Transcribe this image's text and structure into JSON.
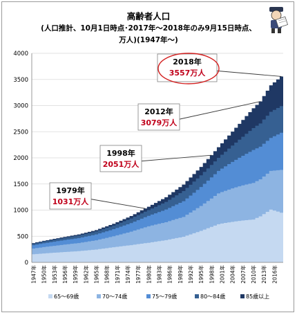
{
  "header": {
    "title_line1": "高齢者人口",
    "title_line2": "(人口推計、10月1日時点･2017年～2018年のみ9月15日時点、",
    "title_line3": "万人)(1947年～)"
  },
  "chart_data": {
    "type": "area",
    "stacked": true,
    "title": "高齢者人口",
    "subtitle": "(人口推計、10月1日時点･2017年～2018年のみ9月15日時点、万人)(1947年～)",
    "xlabel": "",
    "ylabel": "",
    "ylim": [
      0,
      4000
    ],
    "yticks": [
      0,
      500,
      1000,
      1500,
      2000,
      2500,
      3000,
      3500,
      4000
    ],
    "xtick_labels": [
      "1947年",
      "1950年",
      "1953年",
      "1956年",
      "1959年",
      "1962年",
      "1965年",
      "1968年",
      "1971年",
      "1974年",
      "1977年",
      "1980年",
      "1983年",
      "1986年",
      "1989年",
      "1992年",
      "1995年",
      "1998年",
      "2001年",
      "2004年",
      "2007年",
      "2010年",
      "2013年",
      "2016年"
    ],
    "grid": true,
    "legend_position": "bottom",
    "series": [
      {
        "name": "65～69歳",
        "color": "#c5d9f1"
      },
      {
        "name": "70～74歳",
        "color": "#8db4e2"
      },
      {
        "name": "75～79歳",
        "color": "#538dd5"
      },
      {
        "name": "80～84歳",
        "color": "#366092"
      },
      {
        "name": "85歳以上",
        "color": "#1f3864"
      }
    ],
    "totals_anchor": [
      [
        1947,
        370
      ],
      [
        1950,
        412
      ],
      [
        1955,
        475
      ],
      [
        1960,
        535
      ],
      [
        1965,
        618
      ],
      [
        1970,
        739
      ],
      [
        1975,
        887
      ],
      [
        1979,
        1031
      ],
      [
        1980,
        1065
      ],
      [
        1985,
        1247
      ],
      [
        1990,
        1489
      ],
      [
        1995,
        1826
      ],
      [
        1998,
        2051
      ],
      [
        2000,
        2204
      ],
      [
        2005,
        2576
      ],
      [
        2010,
        2948
      ],
      [
        2012,
        3079
      ],
      [
        2015,
        3387
      ],
      [
        2018,
        3557
      ]
    ],
    "anchors": [
      {
        "year": 1947,
        "age65_69": 155,
        "age70_74": 110,
        "age75_79": 65,
        "age80_84": 30,
        "age85_plus": 10
      },
      {
        "year": 1960,
        "age65_69": 215,
        "age70_74": 155,
        "age75_79": 95,
        "age80_84": 50,
        "age85_plus": 20
      },
      {
        "year": 1970,
        "age65_69": 290,
        "age70_74": 210,
        "age75_79": 135,
        "age80_84": 70,
        "age85_plus": 34
      },
      {
        "year": 1980,
        "age65_69": 375,
        "age70_74": 315,
        "age75_79": 200,
        "age80_84": 110,
        "age85_plus": 65
      },
      {
        "year": 1990,
        "age65_69": 490,
        "age70_74": 380,
        "age75_79": 300,
        "age80_84": 195,
        "age85_plus": 124
      },
      {
        "year": 2000,
        "age65_69": 730,
        "age70_74": 590,
        "age75_79": 430,
        "age80_84": 250,
        "age85_plus": 204
      },
      {
        "year": 2010,
        "age65_69": 820,
        "age70_74": 700,
        "age75_79": 630,
        "age80_84": 420,
        "age85_plus": 378
      },
      {
        "year": 2015,
        "age65_69": 1010,
        "age70_74": 740,
        "age75_79": 630,
        "age80_84": 500,
        "age85_plus": 507
      },
      {
        "year": 2018,
        "age65_69": 950,
        "age70_74": 820,
        "age75_79": 710,
        "age80_84": 510,
        "age85_plus": 567
      }
    ],
    "annotations": [
      {
        "year_label": "1979年",
        "value_label": "1031万人",
        "year": 1979,
        "value": 1031
      },
      {
        "year_label": "1998年",
        "value_label": "2051万人",
        "year": 1998,
        "value": 2051
      },
      {
        "year_label": "2012年",
        "value_label": "3079万人",
        "year": 2012,
        "value": 3079
      },
      {
        "year_label": "2018年",
        "value_label": "3557万人",
        "year": 2018,
        "value": 3557,
        "highlighted": true
      }
    ]
  },
  "mascot_icon": "newspaper-boy-mascot-icon"
}
